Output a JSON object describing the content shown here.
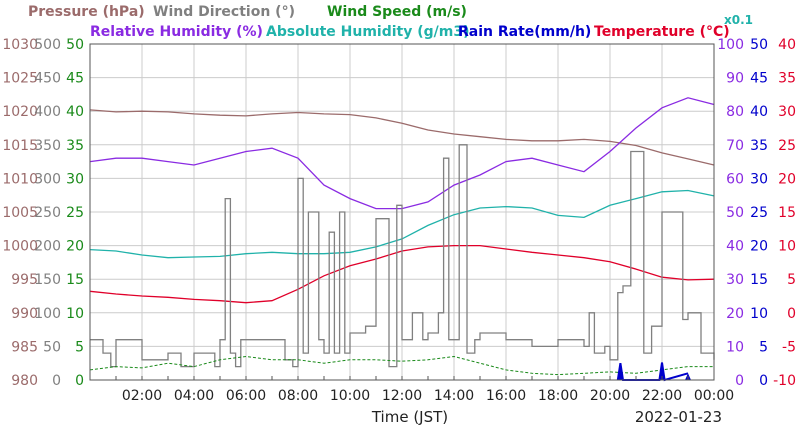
{
  "chart_data": {
    "type": "line",
    "date": "2022-01-23",
    "xlabel": "Time (JST)",
    "x_ticks": [
      "02:00",
      "04:00",
      "06:00",
      "08:00",
      "10:00",
      "12:00",
      "14:00",
      "16:00",
      "18:00",
      "20:00",
      "22:00",
      "00:00"
    ],
    "x_range_hours": [
      0,
      24
    ],
    "grid": true,
    "legend": {
      "row1": [
        {
          "label": "Pressure (hPa)",
          "color": "#9b6b6b"
        },
        {
          "label": "Wind Direction (°)",
          "color": "#808080"
        },
        {
          "label": "Wind Speed (m/s)",
          "color": "#1a8a1a"
        }
      ],
      "row2": [
        {
          "label": "Relative Humidity (%)",
          "color": "#8a2be2"
        },
        {
          "label": "Absolute Humidity (g/m3)",
          "color": "#20b2aa"
        },
        {
          "label": "Rain Rate(mm/h)",
          "color": "#0000cc"
        },
        {
          "label": "Temperature (°C)",
          "color": "#e0002a"
        }
      ]
    },
    "axes": {
      "pressure": {
        "label_color": "#9b6b6b",
        "range": [
          980,
          1030
        ],
        "ticks": [
          "1030",
          "1025",
          "1020",
          "1015",
          "1010",
          "1005",
          "1000",
          "995",
          "990",
          "985",
          "980"
        ]
      },
      "wind_dir": {
        "label_color": "#808080",
        "range": [
          0,
          500
        ],
        "ticks": [
          "500",
          "450",
          "400",
          "350",
          "300",
          "250",
          "200",
          "150",
          "100",
          "50",
          "0"
        ]
      },
      "wind_speed": {
        "label_color": "#1a8a1a",
        "range": [
          0,
          50
        ],
        "ticks": [
          "50",
          "45",
          "40",
          "35",
          "30",
          "25",
          "20",
          "15",
          "10",
          "5",
          "0"
        ]
      },
      "rel_hum": {
        "label_color": "#8a2be2",
        "range": [
          0,
          100
        ],
        "ticks": [
          "100",
          "90",
          "80",
          "70",
          "60",
          "50",
          "40",
          "30",
          "20",
          "10",
          "0"
        ]
      },
      "abs_hum_scale": "x0.1",
      "rain": {
        "label_color": "#0000cc",
        "range": [
          0,
          50
        ],
        "ticks": [
          "50",
          "45",
          "40",
          "35",
          "30",
          "25",
          "20",
          "15",
          "10",
          "5",
          "0"
        ]
      },
      "temp": {
        "label_color": "#e0002a",
        "range": [
          -10,
          40
        ],
        "ticks": [
          "40",
          "35",
          "30",
          "25",
          "20",
          "15",
          "10",
          "5",
          "0",
          "-5",
          "-10"
        ]
      }
    },
    "series": [
      {
        "name": "Pressure (hPa)",
        "color": "#9b6b6b",
        "x": [
          0,
          1,
          2,
          3,
          4,
          5,
          6,
          7,
          8,
          9,
          10,
          11,
          12,
          13,
          14,
          15,
          16,
          17,
          18,
          19,
          20,
          21,
          22,
          23,
          24
        ],
        "y": [
          1020.2,
          1019.9,
          1020.0,
          1019.9,
          1019.6,
          1019.4,
          1019.3,
          1019.6,
          1019.8,
          1019.6,
          1019.5,
          1019.0,
          1018.2,
          1017.2,
          1016.6,
          1016.2,
          1015.8,
          1015.6,
          1015.6,
          1015.8,
          1015.5,
          1014.9,
          1013.8,
          1012.9,
          1012.0
        ]
      },
      {
        "name": "Relative Humidity (%)",
        "color": "#8a2be2",
        "x": [
          0,
          1,
          2,
          3,
          4,
          5,
          6,
          7,
          8,
          9,
          10,
          11,
          12,
          13,
          14,
          15,
          16,
          17,
          18,
          19,
          20,
          21,
          22,
          23,
          24
        ],
        "y": [
          65,
          66,
          66,
          65,
          64,
          66,
          68,
          69,
          66,
          58,
          54,
          51,
          51,
          53,
          58,
          61,
          65,
          66,
          64,
          62,
          68,
          75,
          81,
          84,
          82
        ]
      },
      {
        "name": "Absolute Humidity (g/m3)",
        "color": "#20b2aa",
        "x": [
          0,
          1,
          2,
          3,
          4,
          5,
          6,
          7,
          8,
          9,
          10,
          11,
          12,
          13,
          14,
          15,
          16,
          17,
          18,
          19,
          20,
          21,
          22,
          23,
          24
        ],
        "y": [
          19.4,
          19.2,
          18.6,
          18.2,
          18.3,
          18.4,
          18.8,
          19.0,
          18.8,
          18.8,
          19.0,
          19.8,
          21.0,
          23.0,
          24.6,
          25.6,
          25.8,
          25.6,
          24.5,
          24.2,
          26.0,
          27.0,
          28.0,
          28.2,
          27.4
        ]
      },
      {
        "name": "Temperature (°C)",
        "color": "#e0002a",
        "x": [
          0,
          1,
          2,
          3,
          4,
          5,
          6,
          7,
          8,
          9,
          10,
          11,
          12,
          13,
          14,
          15,
          16,
          17,
          18,
          19,
          20,
          21,
          22,
          23,
          24
        ],
        "y": [
          3.2,
          2.8,
          2.5,
          2.3,
          2.0,
          1.8,
          1.5,
          1.8,
          3.5,
          5.5,
          7.0,
          8.0,
          9.2,
          9.8,
          10.0,
          10.0,
          9.5,
          9.0,
          8.6,
          8.2,
          7.6,
          6.5,
          5.3,
          4.9,
          5.0
        ]
      },
      {
        "name": "Wind Direction (°)",
        "color": "#808080",
        "x": [
          0,
          0.5,
          0.8,
          1,
          2,
          3,
          3.5,
          4,
          4.8,
          5,
          5.2,
          5.4,
          5.6,
          5.8,
          6,
          7,
          7.5,
          7.8,
          8,
          8.2,
          8.4,
          8.8,
          9,
          9.2,
          9.4,
          9.6,
          9.8,
          10,
          10.6,
          11,
          11.5,
          11.8,
          12,
          12.4,
          12.8,
          13,
          13.4,
          13.6,
          13.8,
          14,
          14.2,
          14.5,
          14.8,
          15,
          16,
          17,
          18,
          19,
          19.2,
          19.4,
          19.8,
          20,
          20.3,
          20.5,
          20.8,
          21,
          21.3,
          21.6,
          22,
          22.3,
          22.8,
          23,
          23.5,
          24
        ],
        "y": [
          60,
          40,
          20,
          60,
          30,
          40,
          20,
          40,
          20,
          60,
          270,
          40,
          20,
          60,
          60,
          60,
          30,
          20,
          300,
          40,
          250,
          60,
          40,
          220,
          40,
          250,
          40,
          70,
          80,
          240,
          20,
          260,
          60,
          100,
          60,
          70,
          100,
          330,
          60,
          60,
          350,
          40,
          60,
          70,
          60,
          50,
          60,
          50,
          100,
          40,
          50,
          30,
          130,
          140,
          340,
          340,
          40,
          80,
          250,
          250,
          90,
          100,
          40,
          30
        ]
      },
      {
        "name": "Wind Speed (m/s)",
        "color": "#1a8a1a",
        "x": [
          0,
          1,
          2,
          3,
          4,
          5,
          6,
          7,
          8,
          9,
          10,
          11,
          12,
          13,
          14,
          15,
          16,
          17,
          18,
          19,
          20,
          21,
          22,
          23,
          24
        ],
        "y": [
          1.5,
          2.0,
          1.8,
          2.5,
          2.0,
          3.0,
          3.5,
          3.0,
          3.0,
          2.5,
          3.0,
          3.0,
          2.8,
          3.0,
          3.5,
          2.5,
          1.5,
          1.0,
          0.8,
          1.0,
          1.2,
          1.0,
          1.5,
          2.0,
          2.0
        ]
      },
      {
        "name": "Rain Rate(mm/h)",
        "color": "#0000cc",
        "x": [
          20.3,
          20.4,
          20.5,
          21.9,
          22.0,
          22.1,
          23.0
        ],
        "y": [
          0,
          2.5,
          0,
          0,
          2.6,
          0,
          1.0
        ]
      }
    ]
  }
}
